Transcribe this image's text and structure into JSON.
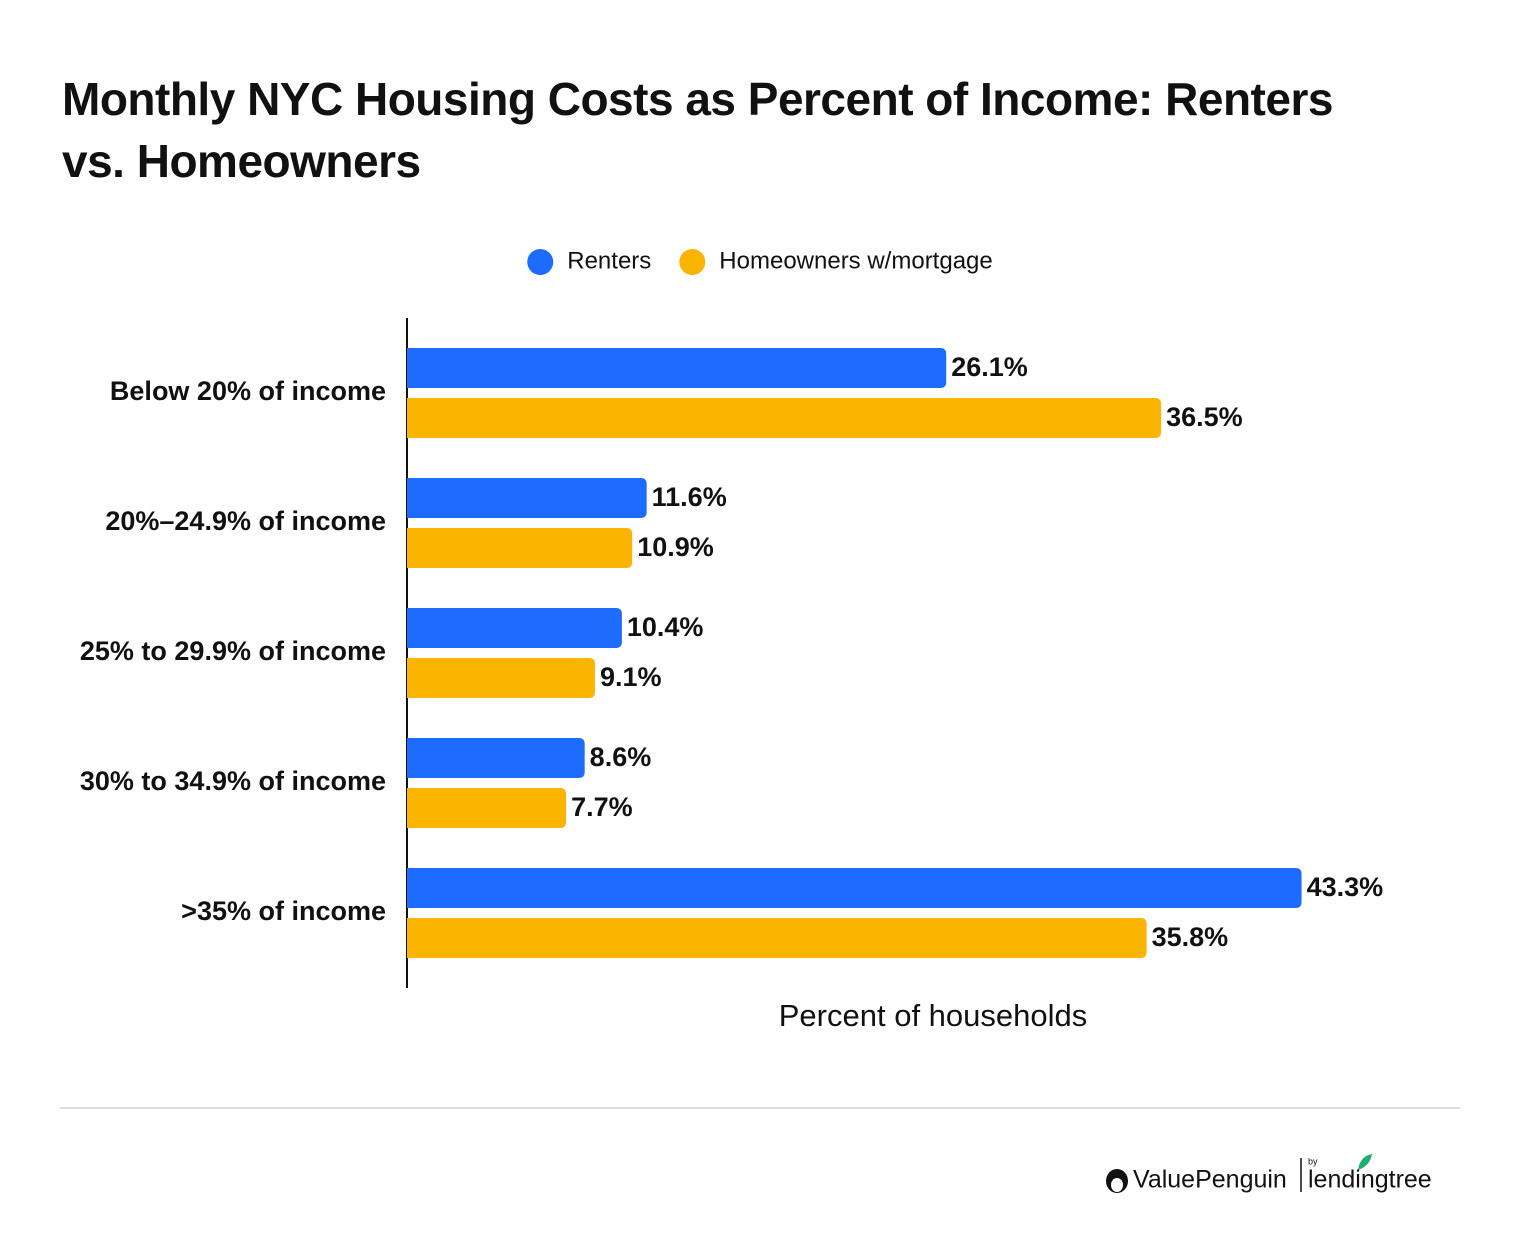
{
  "chart_data": {
    "type": "bar",
    "orientation": "horizontal",
    "title": "Monthly NYC Housing Costs as Percent of Income: Renters vs. Homeowners",
    "x_label": "Percent of households",
    "categories": [
      "Below 20% of income",
      "20%–24.9% of income",
      "25% to 29.9% of income",
      "30% to 34.9% of income",
      ">35% of income"
    ],
    "series": [
      {
        "name": "Renters",
        "color": "#1e6bff",
        "values": [
          26.1,
          11.6,
          10.4,
          8.6,
          43.3
        ],
        "value_labels": [
          "26.1%",
          "11.6%",
          "10.4%",
          "8.6%",
          "43.3%"
        ]
      },
      {
        "name": "Homeowners w/mortgage",
        "color": "#fbb400",
        "values": [
          36.5,
          10.9,
          9.1,
          7.7,
          35.8
        ],
        "value_labels": [
          "36.5%",
          "10.9%",
          "9.1%",
          "7.7%",
          "35.8%"
        ]
      }
    ],
    "xlim": [
      0,
      50
    ],
    "grid": false
  },
  "footer": {
    "brand": "ValuePenguin",
    "by": "by",
    "partner": "lendingtree"
  }
}
